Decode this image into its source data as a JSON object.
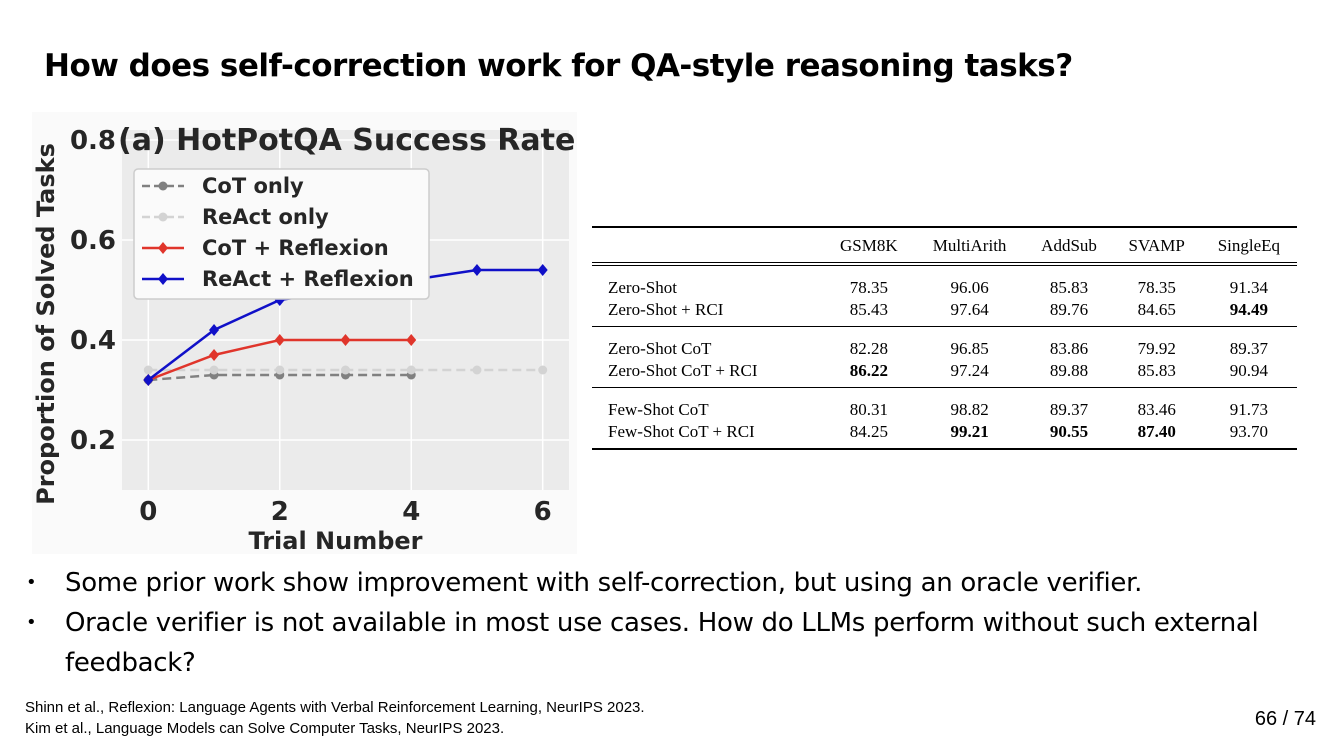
{
  "slide": {
    "title": "How does self-correction work for QA-style reasoning tasks?",
    "bullets": [
      "Some prior work show improvement with self-correction, but using an oracle verifier.",
      "Oracle verifier is not available in most use cases. How do LLMs perform without such external feedback?"
    ],
    "references": [
      "Shinn et al., Reflexion: Language Agents with Verbal Reinforcement Learning, NeurIPS 2023.",
      "Kim et al., Language Models can Solve Computer Tasks, NeurIPS 2023."
    ],
    "page_number": "66 / 74"
  },
  "chart_data": [
    {
      "type": "line",
      "title": "(a) HotPotQA Success Rate",
      "xlabel": "Trial Number",
      "ylabel": "Proportion of Solved Tasks",
      "xlim": [
        -0.4,
        6.4
      ],
      "ylim": [
        0.1,
        0.82
      ],
      "xticks": [
        0,
        2,
        4,
        6
      ],
      "yticks": [
        0.2,
        0.4,
        0.6,
        0.8
      ],
      "grid": true,
      "legend_position": "upper-left",
      "series": [
        {
          "name": "CoT only",
          "color": "#808080",
          "dashed": true,
          "marker": "circle",
          "x": [
            0,
            1,
            2,
            3,
            4
          ],
          "values": [
            0.32,
            0.33,
            0.33,
            0.33,
            0.33
          ]
        },
        {
          "name": "ReAct only",
          "color": "#d3d3d3",
          "dashed": true,
          "marker": "circle",
          "x": [
            0,
            1,
            2,
            3,
            4,
            5,
            6
          ],
          "values": [
            0.34,
            0.34,
            0.34,
            0.34,
            0.34,
            0.34,
            0.34
          ]
        },
        {
          "name": "CoT + Reflexion",
          "color": "#e0352b",
          "dashed": false,
          "marker": "diamond",
          "x": [
            0,
            1,
            2,
            3,
            4
          ],
          "values": [
            0.32,
            0.37,
            0.4,
            0.4,
            0.4
          ]
        },
        {
          "name": "ReAct + Reflexion",
          "color": "#1010c8",
          "dashed": false,
          "marker": "diamond",
          "x": [
            0,
            1,
            2,
            3,
            4,
            5,
            6
          ],
          "values": [
            0.32,
            0.42,
            0.48,
            0.5,
            0.52,
            0.54,
            0.54
          ]
        }
      ]
    },
    {
      "type": "table",
      "columns": [
        "",
        "GSM8K",
        "MultiArith",
        "AddSub",
        "SVAMP",
        "SingleEq"
      ],
      "groups": [
        [
          {
            "label": "Zero-Shot",
            "values": [
              "78.35",
              "96.06",
              "85.83",
              "78.35",
              "91.34"
            ],
            "bold": []
          },
          {
            "label": "Zero-Shot + RCI",
            "values": [
              "85.43",
              "97.64",
              "89.76",
              "84.65",
              "94.49"
            ],
            "bold": [
              4
            ]
          }
        ],
        [
          {
            "label": "Zero-Shot CoT",
            "values": [
              "82.28",
              "96.85",
              "83.86",
              "79.92",
              "89.37"
            ],
            "bold": []
          },
          {
            "label": "Zero-Shot CoT + RCI",
            "values": [
              "86.22",
              "97.24",
              "89.88",
              "85.83",
              "90.94"
            ],
            "bold": [
              0
            ]
          }
        ],
        [
          {
            "label": "Few-Shot CoT",
            "values": [
              "80.31",
              "98.82",
              "89.37",
              "83.46",
              "91.73"
            ],
            "bold": []
          },
          {
            "label": "Few-Shot CoT + RCI",
            "values": [
              "84.25",
              "99.21",
              "90.55",
              "87.40",
              "93.70"
            ],
            "bold": [
              1,
              2,
              3
            ]
          }
        ]
      ]
    }
  ]
}
